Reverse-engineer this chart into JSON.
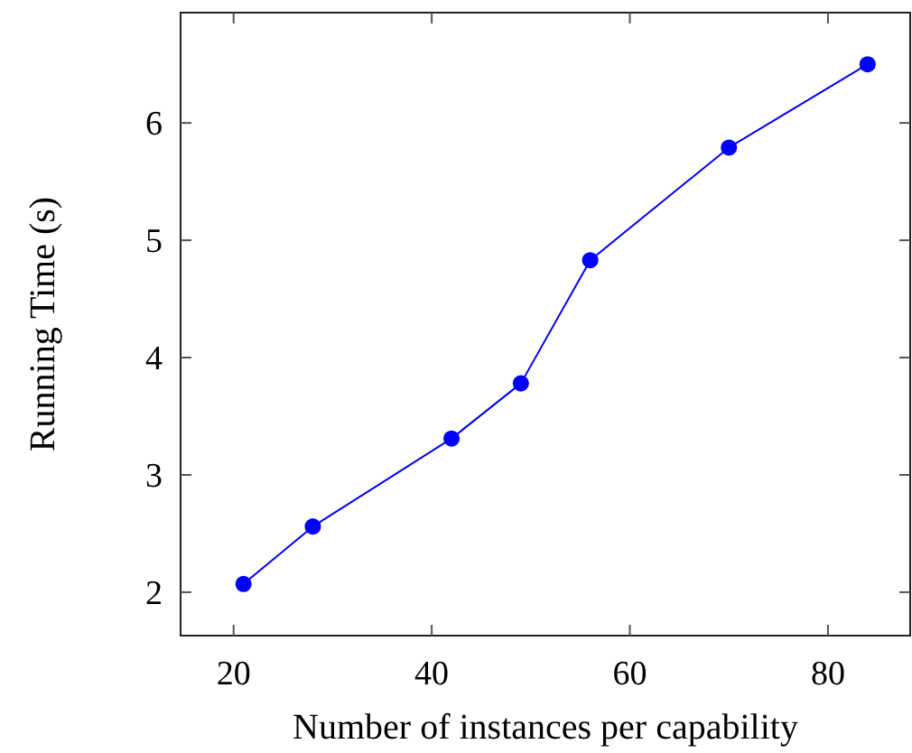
{
  "chart_data": {
    "type": "line",
    "xlabel": "Number of instances per capability",
    "ylabel": "Running Time (s)",
    "x": [
      21,
      28,
      42,
      49,
      56,
      70,
      84
    ],
    "series": [
      {
        "color": "#0000ff",
        "values": [
          2.07,
          2.56,
          3.31,
          3.78,
          4.83,
          5.79,
          6.5
        ]
      }
    ],
    "xlim": [
      14.65,
      88.3
    ],
    "ylim": [
      1.63,
      6.94
    ],
    "xticks": [
      20,
      40,
      60,
      80
    ],
    "yticks": [
      2,
      3,
      4,
      5,
      6
    ],
    "marker": "circle",
    "grid": false
  }
}
